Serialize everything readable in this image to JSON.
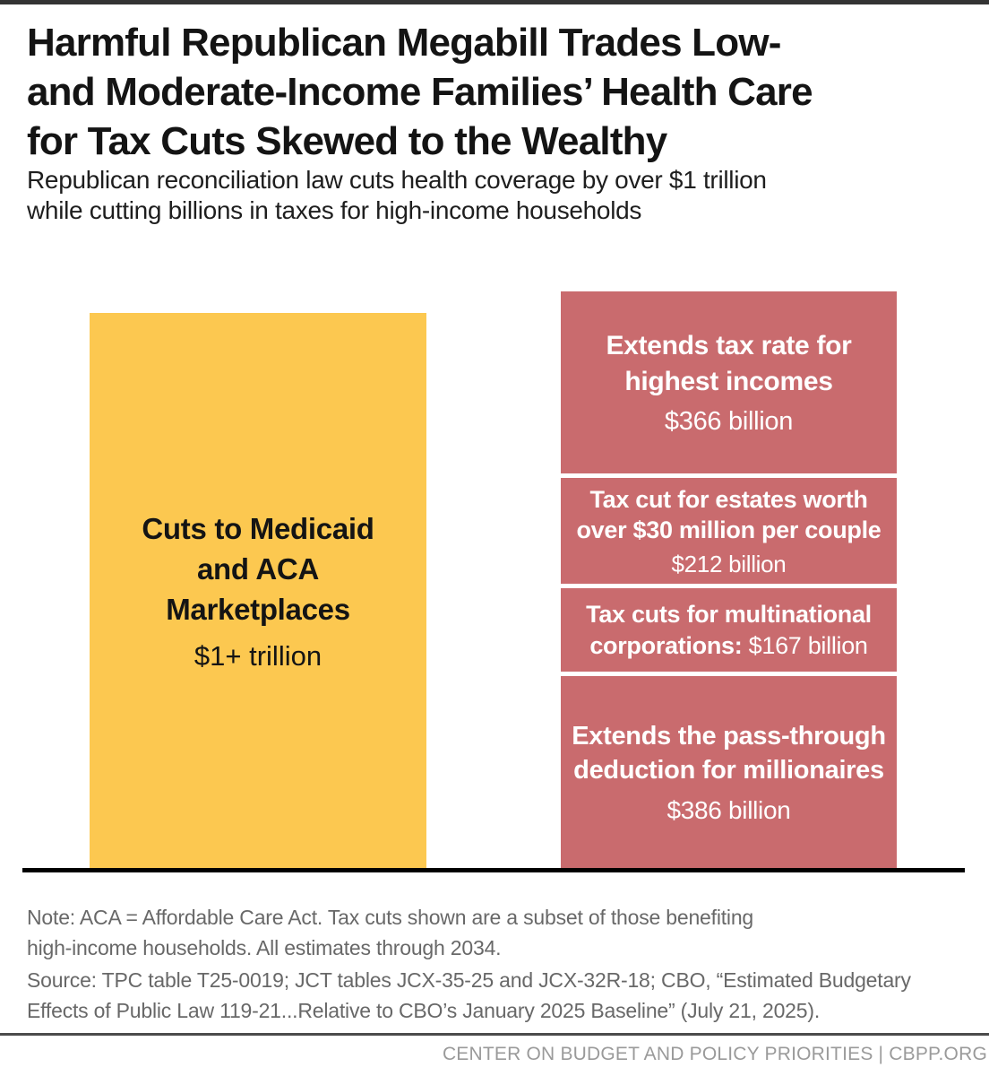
{
  "header": {
    "title_lines": [
      "Harmful Republican Megabill Trades Low-",
      "and Moderate-Income Families’ Health Care",
      "for Tax Cuts Skewed to the Wealthy"
    ],
    "subtitle_lines": [
      "Republican reconciliation law cuts health coverage by over $1 trillion",
      "while cutting billions in taxes for high-income households"
    ]
  },
  "chart_data": {
    "type": "bar",
    "title": "Harmful Republican Megabill Trades Low- and Moderate-Income Families’ Health Care for Tax Cuts Skewed to the Wealthy",
    "subtitle": "Republican reconciliation law cuts health coverage by over $1 trillion while cutting billions in taxes for high-income households",
    "unit": "billions of dollars, estimates through 2034",
    "ylim": [
      0,
      1150
    ],
    "grid": false,
    "legend": "none",
    "bars": [
      {
        "name": "Cuts to Medicaid and ACA Marketplaces",
        "label_lines": [
          "Cuts to Medicaid",
          "and ACA",
          "Marketplaces"
        ],
        "value_label": "$1+ trillion",
        "value_billions_estimate": 1117,
        "color": "#FCC850"
      },
      {
        "name": "Tax cuts benefiting high-income households",
        "color": "#C96B6E",
        "segments": [
          {
            "label_lines": [
              "Extends tax rate for",
              "highest incomes"
            ],
            "value_label": "$366 billion",
            "value_billions": 366
          },
          {
            "label_lines": [
              "Tax cut for estates worth",
              "over $30 million per couple"
            ],
            "value_label": "$212 billion",
            "value_billions": 212
          },
          {
            "label_lines": [
              "Tax cuts for multinational",
              "corporations:"
            ],
            "value_label": "$167 billion",
            "value_billions": 167,
            "value_inline": true
          },
          {
            "label_lines": [
              "Extends the pass-through",
              "deduction for millionaires"
            ],
            "value_label": "$386 billion",
            "value_billions": 386
          }
        ]
      }
    ]
  },
  "note": {
    "lines": [
      "Note: ACA = Affordable Care Act. Tax cuts shown are a subset of those benefiting",
      "high-income households. All estimates through 2034."
    ]
  },
  "source": {
    "lines": [
      "Source: TPC table T25-0019; JCT tables JCX-35-25 and JCX-32R-18; CBO, “Estimated Budgetary",
      "Effects of Public Law 119-21...Relative to CBO’s January 2025 Baseline” (July 21, 2025)."
    ]
  },
  "footer": {
    "text": "CENTER ON BUDGET AND POLICY PRIORITIES | CBPP.ORG"
  },
  "colors": {
    "bar_yellow": "#FCC850",
    "bar_red": "#C96B6E",
    "axis_black": "#000000",
    "top_strip": "#333333",
    "divider_gray": "#4B4B4B",
    "note_gray": "#686868",
    "footer_gray": "#9A9A9A"
  }
}
